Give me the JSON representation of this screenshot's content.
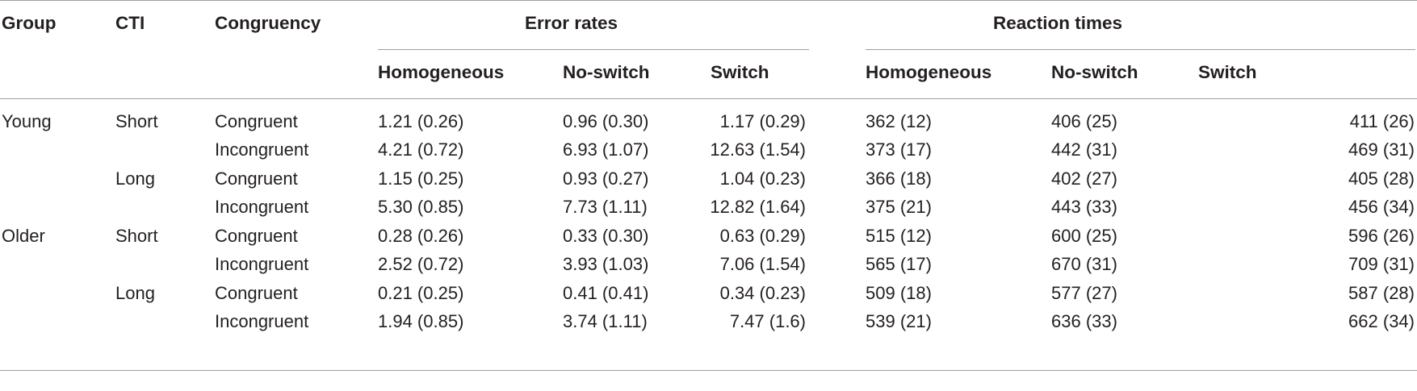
{
  "table": {
    "headers": {
      "group": "Group",
      "cti": "CTI",
      "congruency": "Congruency",
      "error_rates": "Error rates",
      "reaction_times": "Reaction times",
      "err_homogeneous": "Homogeneous",
      "err_noswitch": "No-switch",
      "err_switch": "Switch",
      "rt_homogeneous": "Homogeneous",
      "rt_noswitch": "No-switch",
      "rt_switch": "Switch"
    },
    "rows": [
      {
        "group": "Young",
        "cti": "Short",
        "congruency": "Congruent",
        "err_hom": "1.21 (0.26)",
        "err_ns": "0.96 (0.30)",
        "err_sw": "1.17 (0.29)",
        "rt_hom": "362 (12)",
        "rt_ns": "406 (25)",
        "rt_sw": "411 (26)"
      },
      {
        "group": "",
        "cti": "",
        "congruency": "Incongruent",
        "err_hom": "4.21 (0.72)",
        "err_ns": "6.93 (1.07)",
        "err_sw": "12.63 (1.54)",
        "rt_hom": "373 (17)",
        "rt_ns": "442 (31)",
        "rt_sw": "469 (31)"
      },
      {
        "group": "",
        "cti": "Long",
        "congruency": "Congruent",
        "err_hom": "1.15 (0.25)",
        "err_ns": "0.93 (0.27)",
        "err_sw": "1.04 (0.23)",
        "rt_hom": "366 (18)",
        "rt_ns": "402 (27)",
        "rt_sw": "405 (28)"
      },
      {
        "group": "",
        "cti": "",
        "congruency": "Incongruent",
        "err_hom": "5.30 (0.85)",
        "err_ns": "7.73 (1.11)",
        "err_sw": "12.82 (1.64)",
        "rt_hom": "375 (21)",
        "rt_ns": "443 (33)",
        "rt_sw": "456 (34)"
      },
      {
        "group": "Older",
        "cti": "Short",
        "congruency": "Congruent",
        "err_hom": "0.28 (0.26)",
        "err_ns": "0.33 (0.30)",
        "err_sw": "0.63 (0.29)",
        "rt_hom": "515 (12)",
        "rt_ns": "600 (25)",
        "rt_sw": "596 (26)"
      },
      {
        "group": "",
        "cti": "",
        "congruency": "Incongruent",
        "err_hom": "2.52 (0.72)",
        "err_ns": "3.93 (1.03)",
        "err_sw": "7.06 (1.54)",
        "rt_hom": "565 (17)",
        "rt_ns": "670 (31)",
        "rt_sw": "709 (31)"
      },
      {
        "group": "",
        "cti": "Long",
        "congruency": "Congruent",
        "err_hom": "0.21 (0.25)",
        "err_ns": "0.41 (0.41)",
        "err_sw": "0.34 (0.23)",
        "rt_hom": "509 (18)",
        "rt_ns": "577 (27)",
        "rt_sw": "587 (28)"
      },
      {
        "group": "",
        "cti": "",
        "congruency": "Incongruent",
        "err_hom": "1.94 (0.85)",
        "err_ns": "3.74 (1.11)",
        "err_sw": "7.47 (1.6)",
        "rt_hom": "539 (21)",
        "rt_ns": "636 (33)",
        "rt_sw": "662 (34)"
      }
    ]
  }
}
